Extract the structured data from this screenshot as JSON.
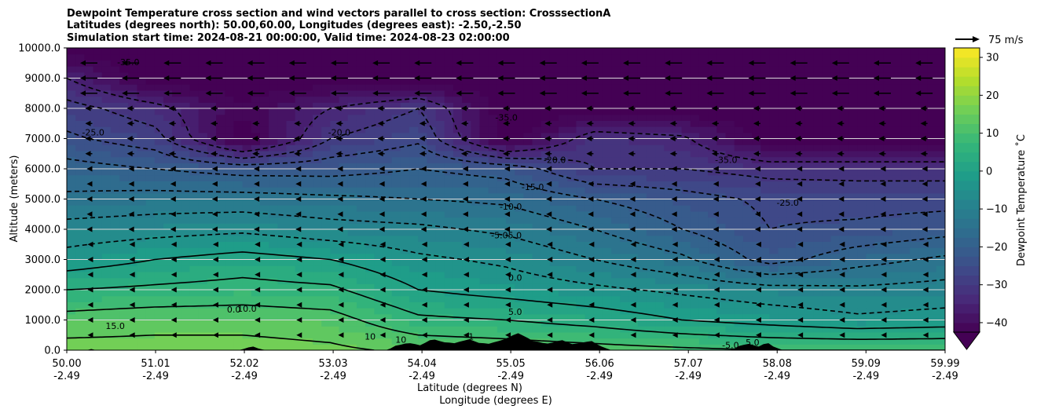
{
  "title_lines": [
    "Dewpoint Temperature cross section and wind vectors parallel to cross section: CrosssectionA",
    "Latitudes (degrees north): 50.00,60.00, Longitudes (degrees east): -2.50,-2.50",
    "Simulation start time: 2024-08-21 00:00:00, Valid time: 2024-08-23 02:00:00"
  ],
  "chart_data": {
    "type": "heatmap",
    "xlabel": "Latitude (degrees N)",
    "xlabel2": "Longitude (degrees E)",
    "ylabel": "Altitude (meters)",
    "xlim": [
      50.0,
      59.99
    ],
    "ylim": [
      0,
      10000
    ],
    "x_ticks": [
      {
        "lat": 50.0,
        "lat_label": "50.00",
        "lon_label": "-2.49"
      },
      {
        "lat": 51.01,
        "lat_label": "51.01",
        "lon_label": "-2.49"
      },
      {
        "lat": 52.02,
        "lat_label": "52.02",
        "lon_label": "-2.49"
      },
      {
        "lat": 53.03,
        "lat_label": "53.03",
        "lon_label": "-2.49"
      },
      {
        "lat": 54.04,
        "lat_label": "54.04",
        "lon_label": "-2.49"
      },
      {
        "lat": 55.05,
        "lat_label": "55.05",
        "lon_label": "-2.49"
      },
      {
        "lat": 56.06,
        "lat_label": "56.06",
        "lon_label": "-2.49"
      },
      {
        "lat": 57.07,
        "lat_label": "57.07",
        "lon_label": "-2.49"
      },
      {
        "lat": 58.08,
        "lat_label": "58.08",
        "lon_label": "-2.49"
      },
      {
        "lat": 59.09,
        "lat_label": "59.09",
        "lon_label": "-2.49"
      },
      {
        "lat": 59.99,
        "lat_label": "59.99",
        "lon_label": "-2.49"
      }
    ],
    "y_ticks": [
      {
        "value": 0,
        "label": "0.0"
      },
      {
        "value": 1000,
        "label": "1000.0"
      },
      {
        "value": 2000,
        "label": "2000.0"
      },
      {
        "value": 3000,
        "label": "3000.0"
      },
      {
        "value": 4000,
        "label": "4000.0"
      },
      {
        "value": 5000,
        "label": "5000.0"
      },
      {
        "value": 6000,
        "label": "6000.0"
      },
      {
        "value": 7000,
        "label": "7000.0"
      },
      {
        "value": 8000,
        "label": "8000.0"
      },
      {
        "value": 9000,
        "label": "9000.0"
      },
      {
        "value": 10000,
        "label": "10000.0"
      }
    ],
    "grid": "horizontal",
    "colorbar": {
      "label": "Dewpoint Temperature $^\\circ$C",
      "label_text": "Dewpoint Temperature ˚C",
      "min": -42.5,
      "max": 32.5,
      "extend": "min",
      "ticks": [
        -40,
        -30,
        -20,
        -10,
        0,
        10,
        20,
        30
      ],
      "tick_labels": [
        "−40",
        "−30",
        "−20",
        "−10",
        "0",
        "10",
        "20",
        "30"
      ],
      "colormap": "viridis"
    },
    "wind_key": {
      "label": "75 m/s",
      "value": 75
    },
    "wind_direction": "southward (toward decreasing latitude)",
    "field_samples": {
      "lat": [
        50.0,
        51.0,
        52.0,
        53.0,
        54.0,
        55.0,
        56.0,
        57.0,
        58.0,
        59.0,
        59.99
      ],
      "heights": [
        0,
        1000,
        2000,
        3000,
        4000,
        5000,
        6000,
        7000,
        8000,
        9000,
        10000
      ],
      "dewpoint": [
        [
          17,
          17,
          17,
          16,
          14,
          13,
          12,
          11,
          10,
          10,
          10
        ],
        [
          12,
          13,
          13,
          12,
          6,
          5,
          3,
          0,
          -2,
          -4,
          -3
        ],
        [
          5,
          6,
          7,
          6,
          0,
          -2,
          -4,
          -6,
          -8,
          -9,
          -8
        ],
        [
          -3,
          0,
          2,
          0,
          -4,
          -6,
          -10,
          -14,
          -22,
          -17,
          -14
        ],
        [
          -8,
          -7,
          -6,
          -8,
          -9,
          -11,
          -15,
          -20,
          -25,
          -24,
          -22
        ],
        [
          -14,
          -13,
          -13,
          -14,
          -15,
          -16,
          -20,
          -23,
          -26,
          -27,
          -27
        ],
        [
          -18,
          -20,
          -22,
          -22,
          -20,
          -22,
          -30,
          -30,
          -32,
          -32,
          -32
        ],
        [
          -24,
          -28,
          -45,
          -30,
          -26,
          -45,
          -32,
          -34,
          -45,
          -45,
          -45
        ],
        [
          -28,
          -33,
          -42,
          -35,
          -30,
          -45,
          -45,
          -45,
          -45,
          -45,
          -45
        ],
        [
          -35,
          -45,
          -45,
          -45,
          -45,
          -45,
          -45,
          -45,
          -45,
          -45,
          -45
        ],
        [
          -45,
          -45,
          -45,
          -45,
          -45,
          -45,
          -45,
          -45,
          -45,
          -45,
          -45
        ]
      ]
    },
    "contour_labels": [
      {
        "text": "-35.0",
        "lat": 50.7,
        "alt": 9430
      },
      {
        "text": "-25.0",
        "lat": 50.3,
        "alt": 7100
      },
      {
        "text": "-20.0",
        "lat": 53.1,
        "alt": 7100
      },
      {
        "text": "-35.0",
        "lat": 55.0,
        "alt": 7600
      },
      {
        "text": "-20.0",
        "lat": 55.55,
        "alt": 6200
      },
      {
        "text": "-35.0",
        "lat": 57.5,
        "alt": 6200
      },
      {
        "text": "-15.0",
        "lat": 55.3,
        "alt": 5300
      },
      {
        "text": "-25.0",
        "lat": 58.2,
        "alt": 4780
      },
      {
        "text": "-10.0",
        "lat": 55.05,
        "alt": 4650
      },
      {
        "text": "-5.05.0",
        "lat": 55.0,
        "alt": 3700
      },
      {
        "text": "0.0",
        "lat": 55.1,
        "alt": 2300
      },
      {
        "text": "5.0",
        "lat": 55.1,
        "alt": 1170
      },
      {
        "text": "10.0",
        "lat": 52.05,
        "alt": 1270
      },
      {
        "text": "0.0",
        "lat": 51.9,
        "alt": 1250
      },
      {
        "text": "10",
        "lat": 53.45,
        "alt": 350
      },
      {
        "text": "10",
        "lat": 53.8,
        "alt": 250
      },
      {
        "text": "15.0",
        "lat": 50.55,
        "alt": 700
      },
      {
        "text": "-5.0",
        "lat": 57.55,
        "alt": 70
      },
      {
        "text": "5.0",
        "lat": 57.8,
        "alt": 150
      },
      {
        "text": "1",
        "lat": 54.6,
        "alt": 350
      }
    ]
  }
}
